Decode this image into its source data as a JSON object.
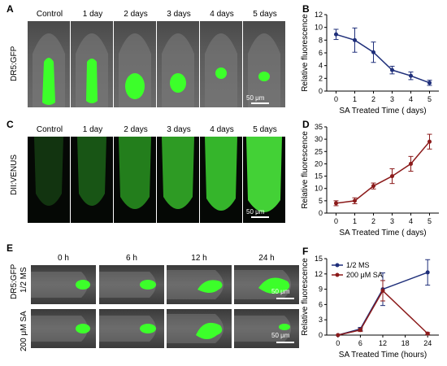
{
  "panel_labels": {
    "a": "A",
    "b": "B",
    "c": "C",
    "d": "D",
    "e": "E",
    "f": "F"
  },
  "panel_a": {
    "row_label": "DR5:GFP",
    "columns": [
      "Control",
      "1 day",
      "2 days",
      "3 days",
      "4 days",
      "5 days"
    ],
    "scale_bar": "50 μm"
  },
  "panel_c": {
    "row_label": "DII:VENUS",
    "columns": [
      "Control",
      "1 day",
      "2 days",
      "3 days",
      "4 days",
      "5 days"
    ],
    "scale_bar": "50 μm"
  },
  "panel_e": {
    "construct_label": "DR5:GFP",
    "columns": [
      "0 h",
      "6 h",
      "12 h",
      "24 h"
    ],
    "rows": [
      "1/2 MS",
      "200 μM SA"
    ],
    "scale_bar": "50 μm"
  },
  "colors": {
    "navy": "#1f2f7a",
    "darkred": "#8b1a1a",
    "gfp": "#3cff2a"
  },
  "chart_data": [
    {
      "id": "B",
      "type": "line",
      "xlabel": "SA Treated Time ( days)",
      "ylabel": "Relative fluorescence",
      "x": [
        0,
        1,
        2,
        3,
        4,
        5
      ],
      "xlim": [
        -0.5,
        5.5
      ],
      "ylim": [
        0,
        12
      ],
      "yticks": [
        0,
        2,
        4,
        6,
        8,
        10,
        12
      ],
      "series": [
        {
          "values": [
            8.9,
            8.0,
            6.1,
            3.3,
            2.4,
            1.3
          ],
          "errors": [
            0.8,
            1.9,
            1.6,
            0.6,
            0.6,
            0.4
          ],
          "color": "#1f2f7a"
        }
      ]
    },
    {
      "id": "D",
      "type": "line",
      "xlabel": "SA Treated Time ( days)",
      "ylabel": "Relative fluorescence",
      "x": [
        0,
        1,
        2,
        3,
        4,
        5
      ],
      "xlim": [
        -0.5,
        5.5
      ],
      "ylim": [
        0,
        35
      ],
      "yticks": [
        0,
        5,
        10,
        15,
        20,
        25,
        30,
        35
      ],
      "series": [
        {
          "values": [
            4,
            5,
            11,
            15,
            20,
            29
          ],
          "errors": [
            1,
            1.2,
            1.2,
            3,
            3,
            3
          ],
          "color": "#8b1a1a"
        }
      ]
    },
    {
      "id": "F",
      "type": "line",
      "xlabel": "SA Treated Time (hours)",
      "ylabel": "Relative fluorescence",
      "x": [
        0,
        6,
        12,
        24
      ],
      "xlim": [
        -3,
        27
      ],
      "ylim": [
        0,
        15
      ],
      "yticks": [
        0,
        3,
        6,
        9,
        12,
        15
      ],
      "xticks": [
        0,
        6,
        12,
        18,
        24
      ],
      "legend_placement": "top-left",
      "series": [
        {
          "name": "1/2 MS",
          "values": [
            0,
            1.2,
            9.0,
            12.3
          ],
          "errors": [
            0,
            0.3,
            3.2,
            2.5
          ],
          "color": "#1f2f7a"
        },
        {
          "name": "200 μM SA",
          "values": [
            0,
            1.0,
            8.7,
            0.3
          ],
          "errors": [
            0,
            0.3,
            2.0,
            0.2
          ],
          "color": "#8b1a1a"
        }
      ]
    }
  ]
}
